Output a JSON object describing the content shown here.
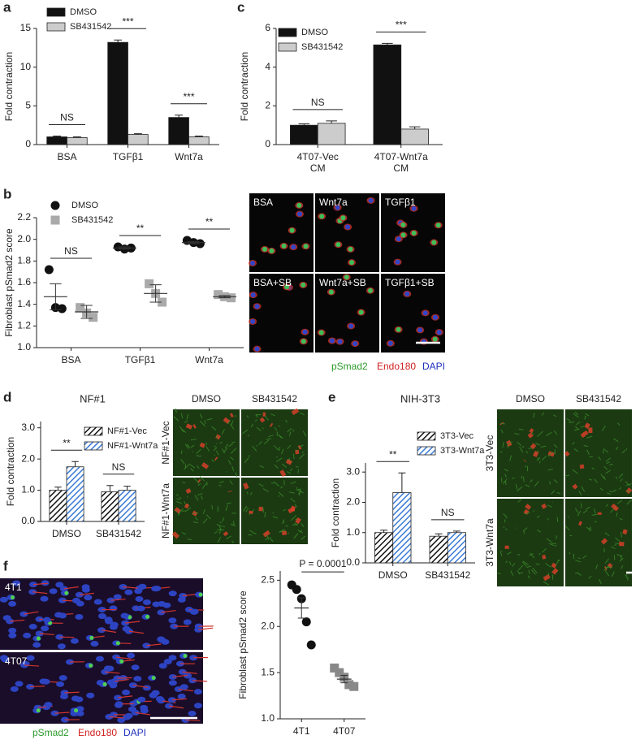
{
  "chart_data": [
    {
      "type": "bar",
      "panel": "a",
      "ylabel": "Fold contraction",
      "categories": [
        "BSA",
        "TGFβ1",
        "Wnt7a"
      ],
      "series": [
        {
          "name": "DMSO",
          "color": "#111111",
          "values": [
            1.0,
            13.2,
            3.5
          ],
          "errors": [
            0.1,
            0.3,
            0.3
          ]
        },
        {
          "name": "SB431542",
          "color": "#cccccc",
          "values": [
            0.9,
            1.3,
            1.0
          ],
          "errors": [
            0.1,
            0.1,
            0.1
          ]
        }
      ],
      "significance": [
        "NS",
        "***",
        "***"
      ],
      "ylim": [
        0,
        15
      ],
      "yticks": [
        0,
        5,
        10,
        15
      ]
    },
    {
      "type": "bar",
      "panel": "c",
      "ylabel": "Fold contraction",
      "categories": [
        [
          "4T07-Vec",
          "CM"
        ],
        [
          "4T07-Wnt7a",
          "CM"
        ]
      ],
      "series": [
        {
          "name": "DMSO",
          "color": "#111111",
          "values": [
            1.0,
            5.15
          ],
          "errors": [
            0.07,
            0.08
          ]
        },
        {
          "name": "SB431542",
          "color": "#cccccc",
          "values": [
            1.1,
            0.8
          ],
          "errors": [
            0.12,
            0.12
          ]
        }
      ],
      "significance": [
        "NS",
        "***"
      ],
      "ylim": [
        0,
        6
      ],
      "yticks": [
        0,
        2,
        4,
        6
      ]
    },
    {
      "type": "scatter",
      "panel": "b",
      "ylabel": "Fibroblast pSmad2 score",
      "categories": [
        "BSA",
        "TGFβ1",
        "Wnt7a"
      ],
      "series": [
        {
          "name": "DMSO",
          "color": "#111111",
          "marker": "circle",
          "values": [
            [
              1.72,
              1.37,
              1.36
            ],
            [
              1.93,
              1.91,
              1.92
            ],
            [
              1.99,
              1.97,
              1.96
            ]
          ],
          "mean": [
            1.47,
            1.92,
            1.97
          ],
          "sem": [
            0.12,
            0.01,
            0.01
          ]
        },
        {
          "name": "SB431542",
          "color": "#aaaaaa",
          "marker": "square",
          "values": [
            [
              1.37,
              1.32,
              1.28
            ],
            [
              1.59,
              1.5,
              1.42
            ],
            [
              1.49,
              1.47,
              1.46
            ]
          ],
          "mean": [
            1.33,
            1.5,
            1.47
          ],
          "sem": [
            0.06,
            0.08,
            0.01
          ]
        }
      ],
      "significance": [
        "NS",
        "**",
        "**"
      ],
      "ylim": [
        1.0,
        2.2
      ],
      "yticks": [
        {
          "value": 1.0,
          "label": "1.0"
        },
        1.2,
        1.4,
        1.6,
        1.8,
        {
          "value": 2.0,
          "label": "2.0"
        },
        2.2
      ]
    },
    {
      "type": "bar",
      "panel": "d",
      "title": "NF#1",
      "ylabel": "Fold contraction",
      "hatch": true,
      "categories": [
        "DMSO",
        "SB431542"
      ],
      "series": [
        {
          "name": "NF#1-Vec",
          "color": "#111111",
          "values": [
            1.0,
            0.95
          ],
          "errors": [
            0.1,
            0.2
          ]
        },
        {
          "name": "NF#1-Wnt7a",
          "color": "#3a7bd5",
          "values": [
            1.75,
            1.0
          ],
          "errors": [
            0.17,
            0.13
          ]
        }
      ],
      "significance": [
        "**",
        "NS"
      ],
      "ylim": [
        0,
        3.2
      ],
      "yticks": [
        {
          "value": 0,
          "label": "0.0"
        },
        {
          "value": 1,
          "label": "1.0"
        },
        {
          "value": 2,
          "label": "2.0"
        },
        {
          "value": 3,
          "label": "3.0"
        }
      ]
    },
    {
      "type": "bar",
      "panel": "e",
      "title": "NIH-3T3",
      "ylabel": "Fold contraction",
      "hatch": true,
      "categories": [
        "DMSO",
        "SB431542"
      ],
      "series": [
        {
          "name": "3T3-Vec",
          "color": "#111111",
          "values": [
            1.0,
            0.88
          ],
          "errors": [
            0.08,
            0.08
          ]
        },
        {
          "name": "3T3-Wnt7a",
          "color": "#3a7bd5",
          "values": [
            2.32,
            1.0
          ],
          "errors": [
            0.65,
            0.05
          ]
        }
      ],
      "significance": [
        "**",
        "NS"
      ],
      "ylim": [
        0,
        3.3
      ],
      "yticks": [
        {
          "value": 0,
          "label": "0.0"
        },
        {
          "value": 1,
          "label": "1.0"
        },
        {
          "value": 2,
          "label": "2.0"
        },
        {
          "value": 3,
          "label": "3.0"
        }
      ]
    },
    {
      "type": "scatter",
      "panel": "f",
      "ylabel": "Fibroblast pSmad2 score",
      "categories": [
        "4T1",
        "4T07"
      ],
      "series": [
        {
          "color": "#111111",
          "marker": "circle",
          "values": [
            [
              2.45,
              2.4,
              2.3,
              2.05,
              1.8
            ],
            null
          ],
          "mean": [
            2.2,
            null
          ],
          "sem": [
            0.11,
            null
          ]
        },
        {
          "color": "#888888",
          "marker": "square",
          "values": [
            null,
            [
              1.55,
              1.5,
              1.45,
              1.37,
              1.35
            ]
          ],
          "mean": [
            null,
            1.43
          ],
          "sem": [
            null,
            0.04
          ]
        }
      ],
      "annotation": "P = 0.0001",
      "ylim": [
        1.0,
        2.6
      ],
      "yticks": [
        {
          "value": 1.0,
          "label": "1.0"
        },
        1.5,
        {
          "value": 2.0,
          "label": "2.0"
        },
        2.5
      ]
    }
  ],
  "micrographs": [
    {
      "labels": [
        "BSA",
        "Wnt7a",
        "TGFβ1",
        "BSA+SB",
        "Wnt7a+SB",
        "TGFβ1+SB"
      ],
      "stains": [
        "pSmad2",
        "Endo180",
        "DAPI"
      ]
    },
    {
      "columns": [
        "DMSO",
        "SB431542"
      ],
      "rows": [
        "NF#1-Vec",
        "NF#1-Wnt7a"
      ]
    },
    {
      "columns": [
        "DMSO",
        "SB431542"
      ],
      "rows": [
        "3T3-Vec",
        "3T3-Wnt7a"
      ]
    },
    {
      "labels": [
        "4T1",
        "4T07"
      ],
      "stains": [
        "pSmad2",
        "Endo180",
        "DAPI"
      ]
    }
  ]
}
